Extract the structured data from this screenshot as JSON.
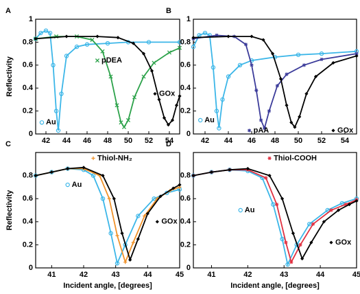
{
  "chart_data": [
    {
      "type": "line",
      "label": "A",
      "ylabel": "Reflectivity",
      "xlim": [
        41,
        55
      ],
      "xticks": [
        42,
        44,
        46,
        48,
        50,
        52,
        54
      ],
      "ylim": [
        0,
        1
      ],
      "yticks": [
        0,
        0.2,
        0.4,
        0.6,
        0.8,
        1
      ],
      "series": [
        {
          "name": "Au",
          "color": "#3bb6e8",
          "marker": "circle",
          "x": [
            41,
            41.5,
            42,
            42.4,
            42.7,
            43,
            43.2,
            43.5,
            44,
            45,
            46,
            48,
            50,
            52,
            55
          ],
          "values": [
            0.83,
            0.88,
            0.9,
            0.88,
            0.6,
            0.2,
            0.03,
            0.35,
            0.68,
            0.76,
            0.78,
            0.79,
            0.8,
            0.8,
            0.8
          ]
        },
        {
          "name": "pDEA",
          "color": "#2ca24a",
          "marker": "cross",
          "x": [
            41,
            43,
            45,
            46.5,
            47.5,
            48.3,
            48.9,
            49.3,
            49.6,
            50,
            50.6,
            51.5,
            52.5,
            54,
            55
          ],
          "values": [
            0.83,
            0.85,
            0.85,
            0.82,
            0.72,
            0.5,
            0.25,
            0.1,
            0.06,
            0.12,
            0.32,
            0.5,
            0.62,
            0.71,
            0.75
          ]
        },
        {
          "name": "GOx",
          "color": "#000000",
          "marker": "diamond",
          "x": [
            41,
            44,
            47,
            49,
            50.5,
            51.5,
            52.3,
            53,
            53.5,
            53.9,
            54.3,
            54.7,
            55
          ],
          "values": [
            0.83,
            0.85,
            0.85,
            0.84,
            0.79,
            0.7,
            0.55,
            0.3,
            0.14,
            0.08,
            0.12,
            0.25,
            0.33
          ]
        }
      ]
    },
    {
      "type": "line",
      "label": "B",
      "xlim": [
        41,
        55
      ],
      "xticks": [
        42,
        44,
        46,
        48,
        50,
        52,
        54
      ],
      "ylim": [
        0,
        1
      ],
      "yticks": [
        0,
        0.2,
        0.4,
        0.6,
        0.8,
        1
      ],
      "series": [
        {
          "name": "Au",
          "color": "#3bb6e8",
          "marker": "circle",
          "x": [
            41,
            41.5,
            42,
            42.4,
            42.7,
            43,
            43.2,
            43.5,
            44,
            45,
            46,
            48,
            50,
            52,
            55
          ],
          "values": [
            0.76,
            0.86,
            0.88,
            0.86,
            0.58,
            0.2,
            0.05,
            0.3,
            0.5,
            0.6,
            0.64,
            0.67,
            0.69,
            0.7,
            0.72
          ]
        },
        {
          "name": "pAA",
          "color": "#3b3b9a",
          "marker": "star",
          "x": [
            41,
            43,
            44.5,
            45.5,
            46,
            46.4,
            46.8,
            47.1,
            47.5,
            48.2,
            49,
            50.5,
            52,
            55
          ],
          "values": [
            0.83,
            0.86,
            0.85,
            0.78,
            0.6,
            0.38,
            0.12,
            0.05,
            0.2,
            0.42,
            0.52,
            0.6,
            0.65,
            0.7
          ]
        },
        {
          "name": "GOx",
          "color": "#000000",
          "marker": "diamond",
          "x": [
            41,
            44,
            46,
            47,
            47.8,
            48.5,
            49,
            49.4,
            49.7,
            50.1,
            50.7,
            51.5,
            53,
            55
          ],
          "values": [
            0.84,
            0.85,
            0.85,
            0.82,
            0.7,
            0.48,
            0.25,
            0.1,
            0.06,
            0.15,
            0.35,
            0.5,
            0.62,
            0.68
          ]
        }
      ]
    },
    {
      "type": "line",
      "label": "C",
      "ylabel": "Reflectivity",
      "xlabel": "Incident angle, [degrees]",
      "xlim": [
        40.5,
        45
      ],
      "xticks": [
        41,
        42,
        43,
        44,
        45
      ],
      "ylim": [
        0,
        1
      ],
      "yticks": [
        0,
        0.2,
        0.4,
        0.6,
        0.8
      ],
      "series": [
        {
          "name": "Au",
          "color": "#3bb6e8",
          "marker": "circle",
          "x": [
            40.5,
            41,
            41.5,
            42,
            42.3,
            42.6,
            42.85,
            43.05,
            43.3,
            43.7,
            44.2,
            44.6,
            45
          ],
          "values": [
            0.8,
            0.83,
            0.86,
            0.85,
            0.8,
            0.6,
            0.3,
            0.04,
            0.2,
            0.45,
            0.6,
            0.65,
            0.68
          ]
        },
        {
          "name": "Thiol-NH₂",
          "color": "#f0922a",
          "marker": "plus",
          "x": [
            40.5,
            41,
            41.5,
            42,
            42.5,
            42.8,
            43.05,
            43.3,
            43.55,
            43.9,
            44.3,
            44.7,
            45
          ],
          "values": [
            0.8,
            0.83,
            0.86,
            0.86,
            0.8,
            0.6,
            0.28,
            0.05,
            0.22,
            0.45,
            0.6,
            0.67,
            0.7
          ]
        },
        {
          "name": "GOx",
          "color": "#000000",
          "marker": "diamond",
          "x": [
            40.5,
            41,
            41.5,
            42,
            42.6,
            42.95,
            43.2,
            43.45,
            43.7,
            44,
            44.4,
            44.8,
            45
          ],
          "values": [
            0.8,
            0.83,
            0.86,
            0.87,
            0.8,
            0.6,
            0.3,
            0.07,
            0.25,
            0.47,
            0.62,
            0.69,
            0.72
          ]
        }
      ]
    },
    {
      "type": "line",
      "label": "D",
      "xlabel": "Incident angle, [degrees]",
      "xlim": [
        40.5,
        45
      ],
      "xticks": [
        41,
        42,
        43,
        44,
        45
      ],
      "ylim": [
        0,
        1
      ],
      "yticks": [
        0,
        0.2,
        0.4,
        0.6,
        0.8
      ],
      "series": [
        {
          "name": "Au",
          "color": "#3bb6e8",
          "marker": "circle",
          "x": [
            40.5,
            41,
            41.5,
            42,
            42.4,
            42.7,
            42.95,
            43.1,
            43.35,
            43.7,
            44.2,
            44.6,
            45
          ],
          "values": [
            0.8,
            0.83,
            0.85,
            0.84,
            0.78,
            0.55,
            0.25,
            0.03,
            0.2,
            0.38,
            0.5,
            0.56,
            0.6
          ]
        },
        {
          "name": "Thiol-COOH",
          "color": "#e03040",
          "marker": "star",
          "x": [
            40.5,
            41,
            41.5,
            42,
            42.5,
            42.8,
            43.05,
            43.2,
            43.45,
            43.8,
            44.3,
            44.7,
            45
          ],
          "values": [
            0.8,
            0.83,
            0.85,
            0.85,
            0.78,
            0.55,
            0.22,
            0.05,
            0.2,
            0.38,
            0.5,
            0.55,
            0.59
          ]
        },
        {
          "name": "GOx",
          "color": "#000000",
          "marker": "diamond",
          "x": [
            40.5,
            41,
            41.5,
            42,
            42.6,
            42.95,
            43.25,
            43.5,
            43.75,
            44.1,
            44.5,
            44.8,
            45
          ],
          "values": [
            0.8,
            0.83,
            0.85,
            0.86,
            0.8,
            0.6,
            0.3,
            0.08,
            0.22,
            0.4,
            0.5,
            0.55,
            0.58
          ]
        }
      ]
    }
  ]
}
